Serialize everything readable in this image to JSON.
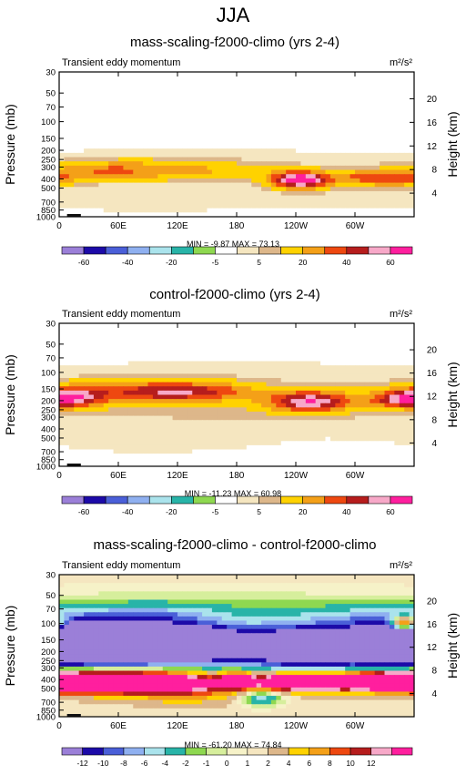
{
  "page_title": "JJA",
  "panels": [
    {
      "title": "mass-scaling-f2000-climo (yrs 2-4)",
      "subtitle": "Transient eddy momentum",
      "units": "m²/s²",
      "stats": "MIN = -9.87  MAX = 73.13"
    },
    {
      "title": "control-f2000-climo (yrs 2-4)",
      "subtitle": "Transient eddy momentum",
      "units": "m²/s²",
      "stats": "MIN = -11.23  MAX = 60.98"
    },
    {
      "title": "mass-scaling-f2000-climo - control-f2000-climo",
      "subtitle": "Transient eddy momentum",
      "units": "m²/s²",
      "stats": "MIN = -61.20  MAX = 74.84"
    }
  ],
  "colors": {
    "ground": "#111111",
    "abs_palette": [
      "#9b7fd8",
      "#1c0aa8",
      "#4a5fd8",
      "#8fb0f0",
      "#aae3ec",
      "#28b4a8",
      "#8ed850",
      "#ffffff",
      "#f5e6c0",
      "#ddb78a",
      "#ffd200",
      "#f4a018",
      "#ee4810",
      "#b61d1d",
      "#f7a8c8",
      "#ff1f9e"
    ],
    "diff_palette": [
      "#9b7fd8",
      "#1c0aa8",
      "#4a5fd8",
      "#8fb0f0",
      "#aae3ec",
      "#28b4a8",
      "#8ed850",
      "#d6ee9c",
      "#f6f2c8",
      "#f5e6c0",
      "#ddb78a",
      "#ffd200",
      "#f4a018",
      "#ee4810",
      "#b61d1d",
      "#f7a8c8",
      "#ff1f9e"
    ]
  },
  "chart_data": [
    {
      "type": "heatmap",
      "title": "mass-scaling-f2000-climo (yrs 2-4)",
      "subtitle": "Transient eddy momentum",
      "units": "m²/s²",
      "ylabel": "Pressure (mb)",
      "ylabel_right": "Height (km)",
      "xticks": [
        "0",
        "60E",
        "120E",
        "180",
        "120W",
        "60W"
      ],
      "x_range_deg": [
        0,
        360
      ],
      "yticks_pressure": [
        30,
        50,
        70,
        100,
        150,
        200,
        250,
        300,
        400,
        500,
        700,
        850,
        1000
      ],
      "yticks_height_km": [
        4,
        8,
        12,
        16,
        20
      ],
      "y_range_mb": [
        1000,
        30
      ],
      "y_scale": "log",
      "min": -9.87,
      "max": 73.13,
      "colorbar_labels": [
        "-60",
        "-40",
        "-20",
        "-5",
        "5",
        "20",
        "40",
        "60"
      ],
      "levels": [
        -70,
        -60,
        -50,
        -40,
        -30,
        -20,
        -10,
        -5,
        0,
        5,
        10,
        20,
        30,
        40,
        50,
        60
      ],
      "background_value": -2,
      "blobs": [
        {
          "lon": 75,
          "p": 325,
          "rlon": 55,
          "rlp": 0.18,
          "amp": 26
        },
        {
          "lon": 30,
          "p": 320,
          "rlon": 30,
          "rlp": 0.12,
          "amp": 8
        },
        {
          "lon": 165,
          "p": 330,
          "rlon": 35,
          "rlp": 0.16,
          "amp": 9
        },
        {
          "lon": 245,
          "p": 410,
          "rlon": 22,
          "rlp": 0.15,
          "amp": 70
        },
        {
          "lon": 335,
          "p": 400,
          "rlon": 30,
          "rlp": 0.13,
          "amp": 38
        },
        {
          "lon": 300,
          "p": 370,
          "rlon": 14,
          "rlp": 0.1,
          "amp": 10
        },
        {
          "lon": 180,
          "p": 300,
          "rlon": 180,
          "rlp": 0.3,
          "amp": 5
        },
        {
          "lon": 100,
          "p": 700,
          "rlon": 70,
          "rlp": 0.2,
          "amp": 4
        },
        {
          "lon": 290,
          "p": 650,
          "rlon": 60,
          "rlp": 0.2,
          "amp": 4
        }
      ]
    },
    {
      "type": "heatmap",
      "title": "control-f2000-climo (yrs 2-4)",
      "subtitle": "Transient eddy momentum",
      "units": "m²/s²",
      "ylabel": "Pressure (mb)",
      "ylabel_right": "Height (km)",
      "xticks": [
        "0",
        "60E",
        "120E",
        "180",
        "120W",
        "60W"
      ],
      "x_range_deg": [
        0,
        360
      ],
      "yticks_pressure": [
        30,
        50,
        70,
        100,
        150,
        200,
        250,
        300,
        400,
        500,
        700,
        850,
        1000
      ],
      "yticks_height_km": [
        4,
        8,
        12,
        16,
        20
      ],
      "y_range_mb": [
        1000,
        30
      ],
      "y_scale": "log",
      "min": -11.23,
      "max": 60.98,
      "colorbar_labels": [
        "-60",
        "-40",
        "-20",
        "-5",
        "5",
        "20",
        "40",
        "60"
      ],
      "levels": [
        -70,
        -60,
        -50,
        -40,
        -30,
        -20,
        -10,
        -5,
        0,
        5,
        10,
        20,
        30,
        40,
        50,
        60
      ],
      "background_value": -2,
      "blobs": [
        {
          "lon": 15,
          "p": 185,
          "rlon": 22,
          "rlp": 0.18,
          "amp": 40
        },
        {
          "lon": 120,
          "p": 160,
          "rlon": 40,
          "rlp": 0.16,
          "amp": 32
        },
        {
          "lon": 65,
          "p": 160,
          "rlon": 55,
          "rlp": 0.22,
          "amp": 20
        },
        {
          "lon": 255,
          "p": 205,
          "rlon": 30,
          "rlp": 0.18,
          "amp": 54
        },
        {
          "lon": 345,
          "p": 195,
          "rlon": 22,
          "rlp": 0.15,
          "amp": 38
        },
        {
          "lon": 180,
          "p": 200,
          "rlon": 180,
          "rlp": 0.55,
          "amp": 9
        },
        {
          "lon": 170,
          "p": 160,
          "rlon": 30,
          "rlp": 0.18,
          "amp": 10
        },
        {
          "lon": 90,
          "p": 500,
          "rlon": 70,
          "rlp": 0.25,
          "amp": 4
        }
      ]
    },
    {
      "type": "heatmap",
      "title": "mass-scaling-f2000-climo - control-f2000-climo",
      "subtitle": "Transient eddy momentum",
      "units": "m²/s²",
      "ylabel": "Pressure (mb)",
      "ylabel_right": "Height (km)",
      "xticks": [
        "0",
        "60E",
        "120E",
        "180",
        "120W",
        "60W"
      ],
      "x_range_deg": [
        0,
        360
      ],
      "yticks_pressure": [
        30,
        50,
        70,
        100,
        150,
        200,
        250,
        300,
        400,
        500,
        700,
        850,
        1000
      ],
      "yticks_height_km": [
        4,
        8,
        12,
        16,
        20
      ],
      "y_range_mb": [
        1000,
        30
      ],
      "y_scale": "log",
      "min": -61.2,
      "max": 74.84,
      "colorbar_labels": [
        "-12",
        "-10",
        "-8",
        "-6",
        "-4",
        "-2",
        "-1",
        "0",
        "1",
        "2",
        "4",
        "6",
        "8",
        "10",
        "12"
      ],
      "levels": [
        -14,
        -12,
        -10,
        -8,
        -6,
        -4,
        -2,
        -1,
        0,
        1,
        2,
        4,
        6,
        8,
        10,
        12,
        14
      ],
      "background_value": 1.5,
      "blobs": [
        {
          "lon": 75,
          "p": 160,
          "rlon": 70,
          "rlp": 0.42,
          "amp": -26
        },
        {
          "lon": 150,
          "p": 170,
          "rlon": 25,
          "rlp": 0.25,
          "amp": -14
        },
        {
          "lon": 250,
          "p": 180,
          "rlon": 45,
          "rlp": 0.4,
          "amp": -22
        },
        {
          "lon": 345,
          "p": 170,
          "rlon": 35,
          "rlp": 0.38,
          "amp": -20
        },
        {
          "lon": 350,
          "p": 100,
          "rlon": 10,
          "rlp": 0.12,
          "amp": 22
        },
        {
          "lon": 60,
          "p": 420,
          "rlon": 65,
          "rlp": 0.18,
          "amp": 30
        },
        {
          "lon": 180,
          "p": 410,
          "rlon": 10,
          "rlp": 0.12,
          "amp": 18
        },
        {
          "lon": 250,
          "p": 420,
          "rlon": 38,
          "rlp": 0.15,
          "amp": 28
        },
        {
          "lon": 340,
          "p": 410,
          "rlon": 30,
          "rlp": 0.15,
          "amp": 25
        },
        {
          "lon": 130,
          "p": 550,
          "rlon": 40,
          "rlp": 0.2,
          "amp": 5
        },
        {
          "lon": 205,
          "p": 620,
          "rlon": 15,
          "rlp": 0.15,
          "amp": -7
        },
        {
          "lon": 180,
          "p": 60,
          "rlon": 180,
          "rlp": 0.3,
          "amp": -2
        },
        {
          "lon": 90,
          "p": 80,
          "rlon": 60,
          "rlp": 0.15,
          "amp": -3
        },
        {
          "lon": 300,
          "p": 85,
          "rlon": 40,
          "rlp": 0.18,
          "amp": -3
        }
      ]
    }
  ]
}
